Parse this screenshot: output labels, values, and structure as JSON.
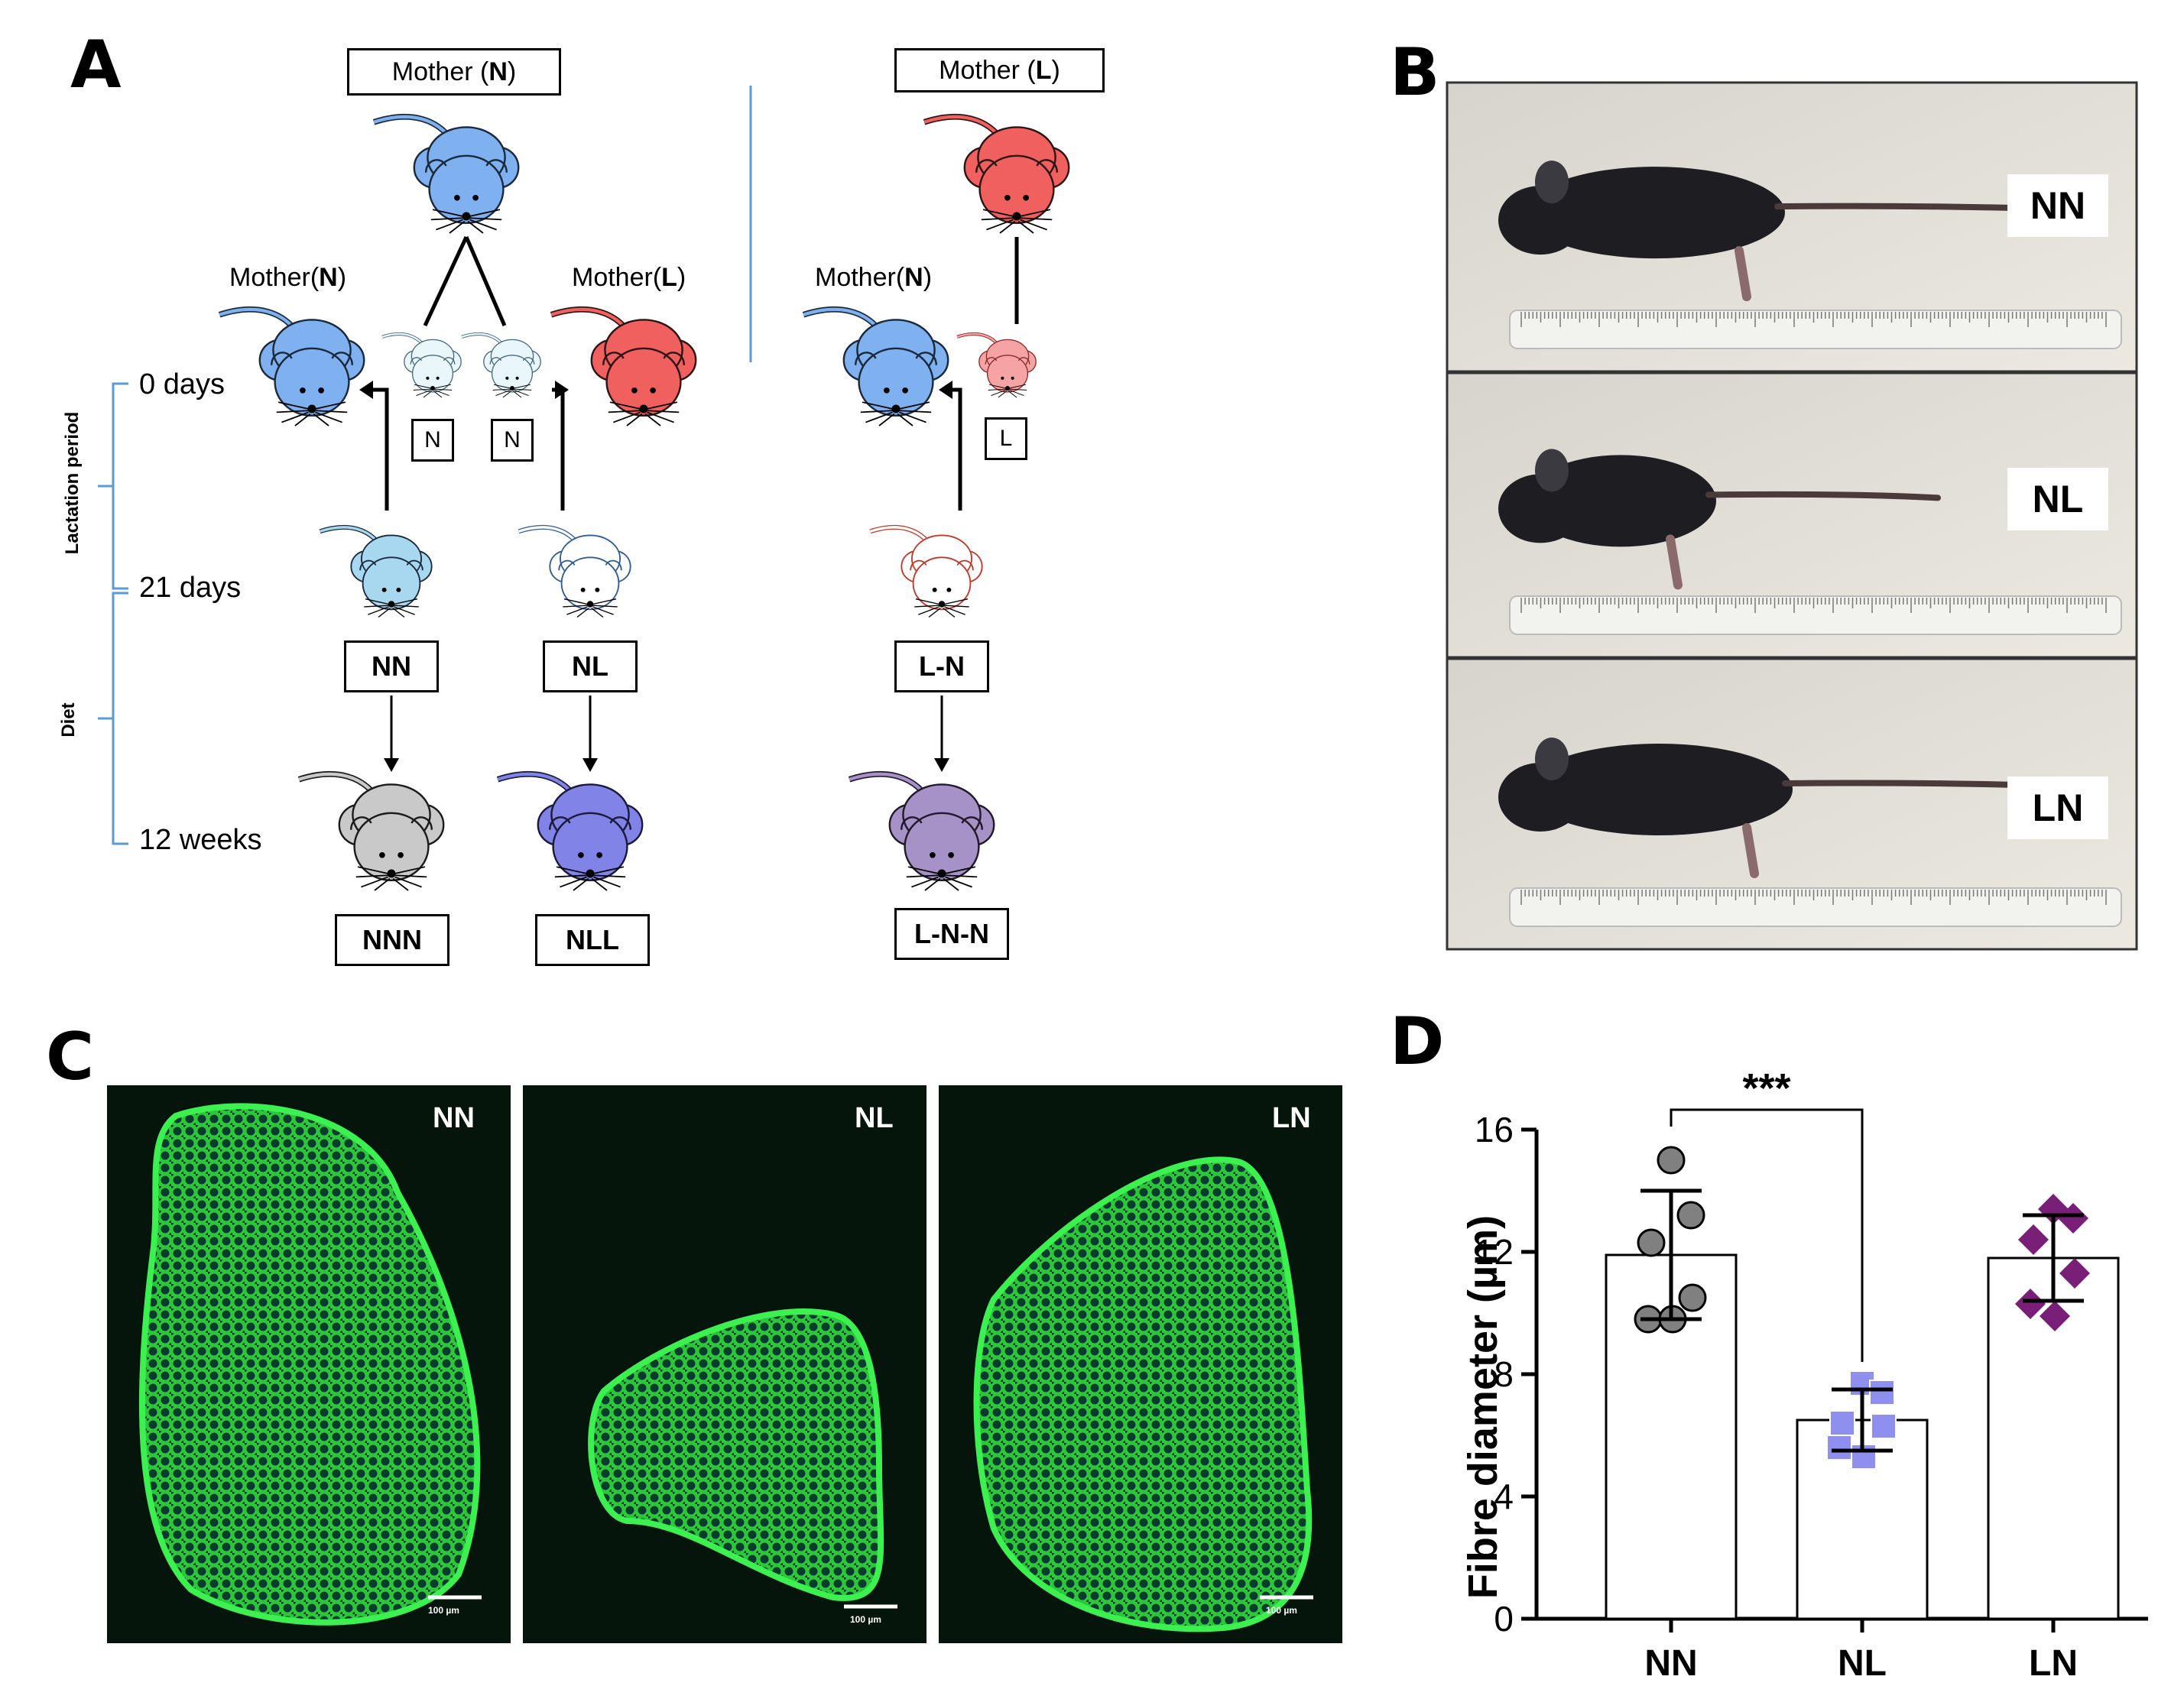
{
  "panel_letters": {
    "a": "A",
    "b": "B",
    "c": "C",
    "d": "D"
  },
  "panelA": {
    "mother_n_top": {
      "prefix": "Mother (",
      "letter": "N",
      "suffix": ")"
    },
    "mother_l_top": {
      "prefix": "Mother (",
      "letter": "L",
      "suffix": ")"
    },
    "mother_n_left": {
      "prefix": "Mother(",
      "letter": "N",
      "suffix": ")"
    },
    "mother_l_mid": {
      "prefix": "Mother(",
      "letter": "L",
      "suffix": ")"
    },
    "mother_n_right": {
      "prefix": "Mother(",
      "letter": "N",
      "suffix": ")"
    },
    "pup_labels": [
      "N",
      "N",
      "L"
    ],
    "timeline": [
      "0 days",
      "21 days",
      "12 weeks"
    ],
    "period_labels": {
      "lactation": "Lactation period",
      "diet": "Diet"
    },
    "group_21d": [
      "NN",
      "NL",
      "L-N"
    ],
    "group_12w": [
      "NNN",
      "NLL",
      "L-N-N"
    ],
    "colors": {
      "mother_n": "#7fb0f0",
      "mother_l": "#f0605e",
      "pup_n": "#e9f7fb",
      "pup_l": "#f5a3a3",
      "nn_weaned": "#a7d8f0",
      "nnn": "#c9c9c9",
      "nll": "#8184e6",
      "lnn": "#a792c7",
      "divider": "#5b9bd5"
    }
  },
  "panelB": {
    "labels": [
      "NN",
      "NL",
      "LN"
    ]
  },
  "panelC": {
    "labels": [
      "NN",
      "NL",
      "LN"
    ],
    "scale_bar": "100 µm"
  },
  "chart_data": {
    "type": "bar",
    "categories": [
      "NN",
      "NL",
      "LN"
    ],
    "values": [
      11.9,
      6.5,
      11.8
    ],
    "error_sd": [
      2.1,
      1.0,
      1.4
    ],
    "points": [
      [
        15.0,
        13.2,
        12.3,
        10.5,
        9.8,
        9.8
      ],
      [
        7.7,
        7.4,
        6.4,
        6.3,
        5.6,
        5.3
      ],
      [
        13.4,
        13.1,
        12.4,
        11.3,
        10.3,
        9.9
      ]
    ],
    "marker_colors": [
      "#808080",
      "#8f8ff0",
      "#7a1f78"
    ],
    "marker_shapes": [
      "circle",
      "square",
      "diamond"
    ],
    "ylabel": "Fibre diameter (µm)",
    "ylim": [
      0,
      16
    ],
    "yticks": [
      "0",
      "4",
      "8",
      "12",
      "16"
    ],
    "significance": {
      "from": "NN",
      "to": "NL",
      "label": "***"
    }
  }
}
